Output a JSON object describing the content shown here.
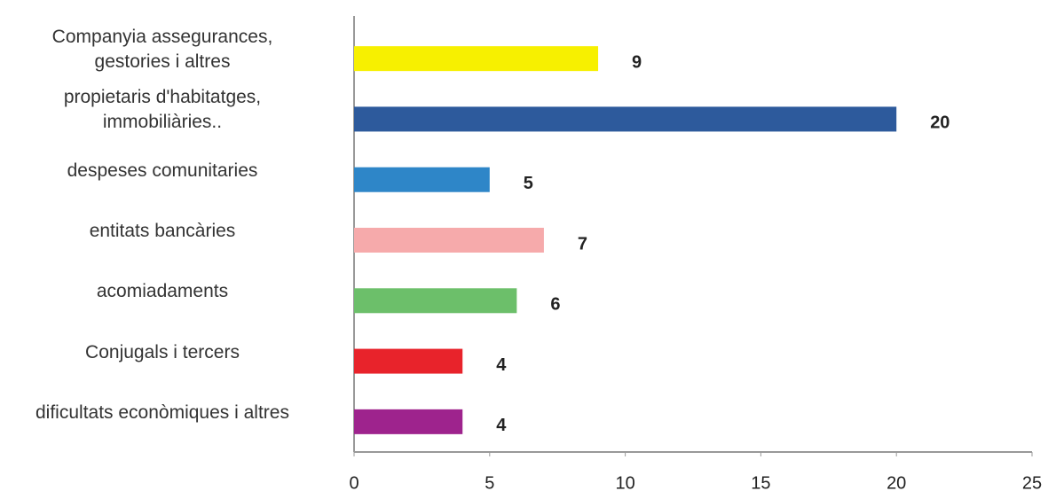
{
  "chart_data": {
    "type": "barh",
    "categories": [
      "Companyia assegurances,\ngestories i altres",
      "propietaris d'habitatges,\nimmobiliàries..",
      "despeses comunitaries",
      "entitats bancàries",
      "acomiadaments",
      "Conjugals i tercers",
      "dificultats econòmiques i altres"
    ],
    "values": [
      9,
      20,
      5,
      7,
      6,
      4,
      4
    ],
    "colors": [
      "#f7f000",
      "#2d5a9c",
      "#2e86c8",
      "#f6aaab",
      "#6cbf6a",
      "#e8232b",
      "#9e238d"
    ],
    "xlim": [
      0,
      25
    ],
    "xticks": [
      0,
      5,
      10,
      15,
      20,
      25
    ],
    "grid": false
  }
}
